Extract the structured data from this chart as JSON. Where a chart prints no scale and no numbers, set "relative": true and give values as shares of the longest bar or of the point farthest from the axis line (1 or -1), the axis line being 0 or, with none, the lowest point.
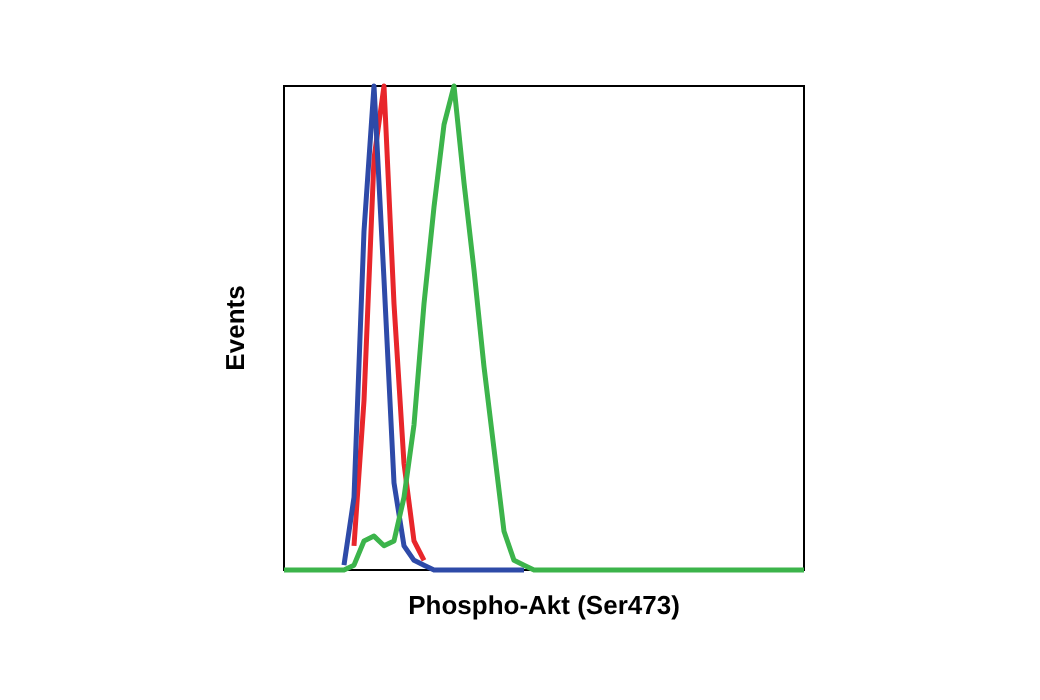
{
  "chart_data": {
    "type": "line",
    "relative": true,
    "xlabel": "Phospho-Akt (Ser473)",
    "ylabel": "Events",
    "grid": false,
    "marker": "none",
    "line_style": "solid",
    "categories": [
      null,
      null,
      null,
      null,
      null,
      null,
      null,
      null,
      null,
      null,
      null,
      null,
      null,
      null,
      null,
      null,
      null,
      null,
      null,
      null,
      null,
      null,
      null,
      null,
      null,
      null,
      null,
      null,
      null,
      null,
      null,
      null,
      null,
      null,
      null,
      null,
      null,
      null,
      null,
      null,
      null,
      null,
      null,
      null,
      null,
      null,
      null,
      null,
      null,
      null,
      null,
      null,
      null
    ],
    "series": [
      {
        "color": "#e8262b",
        "values": [
          null,
          null,
          null,
          null,
          null,
          null,
          null,
          0.05,
          0.35,
          0.85,
          1,
          0.55,
          0.22,
          0.06,
          0.02,
          null,
          null,
          null,
          null,
          null,
          null,
          null,
          null,
          null,
          null,
          null,
          null,
          null,
          null,
          null,
          null,
          null,
          null,
          null,
          null,
          null,
          null,
          null,
          null,
          null,
          null,
          null,
          null,
          null,
          null,
          null,
          null,
          null,
          null,
          null,
          null,
          null,
          null
        ]
      },
      {
        "color": "#2e4aa8",
        "values": [
          null,
          null,
          null,
          null,
          null,
          null,
          0.01,
          0.15,
          0.7,
          1,
          0.6,
          0.18,
          0.05,
          0.02,
          0.01,
          0,
          0,
          0,
          0,
          0,
          0,
          0,
          0,
          0,
          0,
          null,
          null,
          null,
          null,
          null,
          null,
          null,
          null,
          null,
          null,
          null,
          null,
          null,
          null,
          null,
          null,
          null,
          null,
          null,
          null,
          null,
          null,
          null,
          null,
          null,
          null,
          null,
          null
        ]
      },
      {
        "color": "#3cb44b",
        "values": [
          0,
          0,
          0,
          0,
          0,
          0,
          0,
          0.01,
          0.06,
          0.07,
          0.05,
          0.06,
          0.15,
          0.3,
          0.55,
          0.75,
          0.92,
          1,
          0.8,
          0.62,
          0.42,
          0.25,
          0.08,
          0.02,
          0.01,
          0,
          0,
          0,
          0,
          0,
          0,
          0,
          0,
          0,
          0,
          0,
          0,
          0,
          0,
          0,
          0,
          0,
          0,
          0,
          0,
          0,
          0,
          0,
          0,
          0,
          0,
          0,
          0
        ]
      }
    ]
  }
}
